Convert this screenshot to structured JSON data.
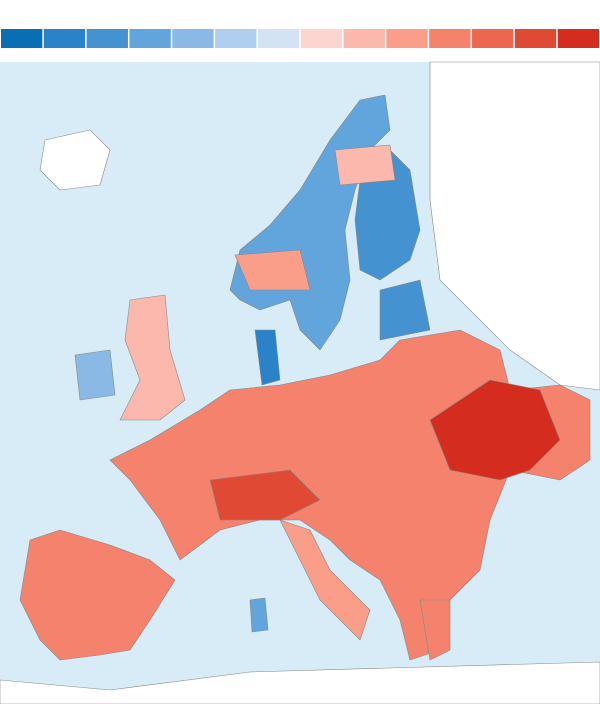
{
  "legend": {
    "colors": [
      "#0a6eb4",
      "#2a82c8",
      "#4592d0",
      "#62a4dc",
      "#8ab9e6",
      "#b0cff0",
      "#d4e3f3",
      "#fdd5d0",
      "#fcb8ac",
      "#fa9e8a",
      "#f5826d",
      "#ec6650",
      "#e04a35",
      "#d42d1f"
    ]
  }
}
